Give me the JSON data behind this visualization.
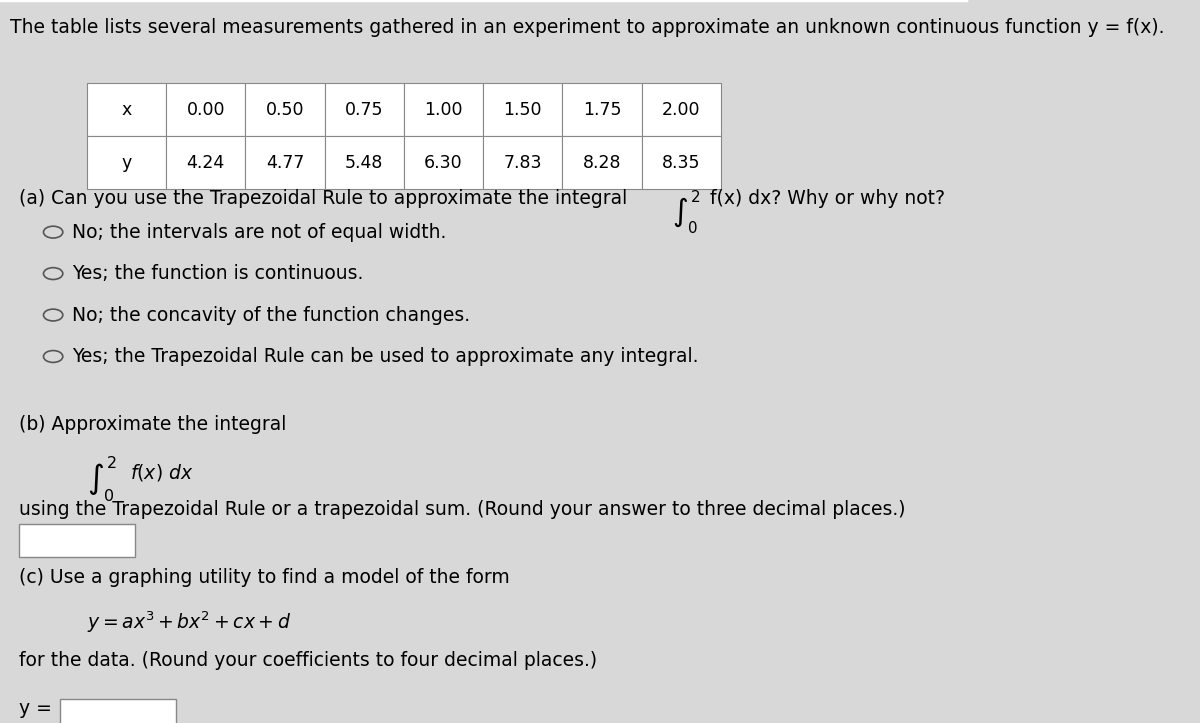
{
  "bg_color": "#d8d8d8",
  "title_text": "The table lists several measurements gathered in an experiment to approximate an unknown continuous function y = f(x).",
  "table_x_vals": [
    "x",
    "0.00",
    "0.50",
    "0.75",
    "1.00",
    "1.50",
    "1.75",
    "2.00"
  ],
  "table_y_vals": [
    "y",
    "4.24",
    "4.77",
    "5.48",
    "6.30",
    "7.83",
    "8.28",
    "8.35"
  ],
  "part_a_text": "(a) Can you use the Trapezoidal Rule to approximate the integral",
  "integral_text": "f(x) dx? Why or why not?",
  "option1": "No; the intervals are not of equal width.",
  "option2": "Yes; the function is continuous.",
  "option3": "No; the concavity of the function changes.",
  "option4": "Yes; the Trapezoidal Rule can be used to approximate any integral.",
  "part_b_text": "(b) Approximate the integral",
  "part_b_sub": "using the Trapezoidal Rule or a trapezoidal sum. (Round your answer to three decimal places.)",
  "part_c_text": "(c) Use a graphing utility to find a model of the form",
  "part_c_formula": "y = ax³ + bx² + cx + d",
  "part_c_sub": "for the data. (Round your coefficients to four decimal places.)",
  "y_equals": "y =",
  "font_size": 13.5,
  "small_font": 12.5
}
